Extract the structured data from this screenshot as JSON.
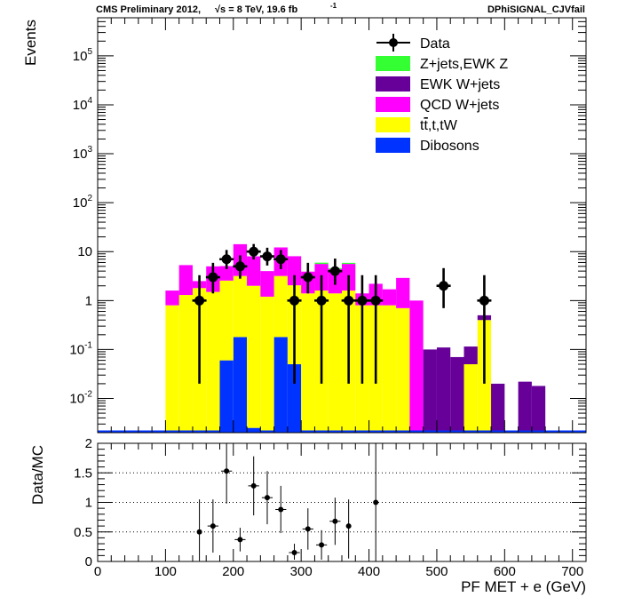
{
  "header": {
    "left_text": "CMS Preliminary 2012,",
    "energy": "√s = 8 TeV, 19.6 fb",
    "energy_exponent": "-1",
    "right_text": "DPhiSIGNAL_CJVfail"
  },
  "chart_data": [
    {
      "type": "bar",
      "stacked": true,
      "ylabel": "Events",
      "y_scale": "log",
      "ylim": [
        0.002,
        600000
      ],
      "y_tick_labels": [
        "10^-2",
        "10^-1",
        "1",
        "10",
        "10^2",
        "10^3",
        "10^4",
        "10^5"
      ],
      "legend_position": "top-right",
      "colors": {
        "data": "#000000",
        "zjets": "#33ff33",
        "ewk_wjets": "#660099",
        "qcd_wjets": "#ff00ff",
        "top": "#ffff00",
        "dibosons": "#0033ff"
      },
      "legend": [
        {
          "label": "Data",
          "key": "data",
          "marker": "point"
        },
        {
          "label": "Z+jets,EWK Z",
          "key": "zjets",
          "marker": "box"
        },
        {
          "label": "EWK W+jets",
          "key": "ewk_wjets",
          "marker": "box"
        },
        {
          "label": "QCD W+jets",
          "key": "qcd_wjets",
          "marker": "box"
        },
        {
          "label": "t",
          "label_overbar": "t",
          "label_rest": ",t,tW",
          "key": "top",
          "marker": "box"
        },
        {
          "label": "Dibosons",
          "key": "dibosons",
          "marker": "box"
        }
      ],
      "bin_edges": [
        0,
        20,
        40,
        60,
        80,
        100,
        120,
        140,
        160,
        180,
        200,
        220,
        240,
        260,
        280,
        300,
        320,
        340,
        360,
        380,
        400,
        420,
        440,
        460,
        480,
        500,
        520,
        540,
        560,
        580,
        600,
        620,
        640,
        660,
        680,
        700,
        720
      ],
      "stack": [
        {
          "key": "dibosons",
          "values": [
            0,
            0,
            0,
            0,
            0,
            0,
            0,
            0,
            0,
            0.06,
            0.18,
            0.0025,
            0,
            0.18,
            0.05,
            0,
            0,
            0,
            0,
            0,
            0,
            0,
            0,
            0,
            0,
            0,
            0,
            0,
            0,
            0,
            0,
            0,
            0,
            0,
            0,
            0
          ]
        },
        {
          "key": "top",
          "values": [
            0,
            0,
            0,
            0,
            0,
            0.8,
            1.3,
            1.8,
            1.5,
            2.5,
            3.0,
            2.0,
            1.2,
            3.0,
            2.0,
            1.4,
            1.6,
            1.4,
            1.6,
            0.8,
            0.8,
            0.8,
            0.7,
            0,
            0,
            0,
            0,
            0.05,
            0.4,
            0,
            0,
            0,
            0,
            0,
            0,
            0
          ]
        },
        {
          "key": "qcd_wjets",
          "values": [
            0,
            0,
            0,
            0,
            0,
            0.8,
            4.0,
            0.7,
            3.5,
            2.5,
            11,
            6,
            2.8,
            9,
            6,
            2.5,
            4.0,
            3.0,
            4.0,
            0.6,
            1.4,
            0.9,
            2.2,
            1.0,
            0,
            0,
            0,
            0,
            0,
            0,
            0,
            0,
            0,
            0,
            0,
            0
          ]
        },
        {
          "key": "ewk_wjets",
          "values": [
            0,
            0,
            0,
            0,
            0,
            0,
            0,
            0,
            0,
            0,
            0,
            0,
            0,
            0,
            0,
            0,
            0,
            0,
            0,
            0,
            0,
            0,
            0,
            0,
            0.1,
            0.11,
            0.07,
            0.065,
            0.1,
            0.02,
            0,
            0.022,
            0.018,
            0,
            0,
            0
          ]
        },
        {
          "key": "zjets",
          "values": [
            0,
            0,
            0,
            0,
            0,
            0,
            0,
            0,
            0,
            0,
            0,
            0,
            0,
            0,
            0,
            0,
            0.35,
            0.2,
            0.3,
            0,
            0,
            0,
            0,
            0,
            0,
            0,
            0,
            0,
            0,
            0,
            0,
            0,
            0,
            0,
            0,
            0
          ]
        }
      ],
      "data_points": [
        {
          "x": 150,
          "y": 1,
          "err_lo": 0.98,
          "err_hi": 2.3
        },
        {
          "x": 170,
          "y": 3,
          "err_lo": 1.6,
          "err_hi": 2.9
        },
        {
          "x": 190,
          "y": 7,
          "err_lo": 2.6,
          "err_hi": 3.8
        },
        {
          "x": 210,
          "y": 5,
          "err_lo": 2.2,
          "err_hi": 3.4
        },
        {
          "x": 230,
          "y": 10,
          "err_lo": 3.1,
          "err_hi": 4.3
        },
        {
          "x": 250,
          "y": 8,
          "err_lo": 2.8,
          "err_hi": 4.0
        },
        {
          "x": 270,
          "y": 7,
          "err_lo": 2.6,
          "err_hi": 3.8
        },
        {
          "x": 290,
          "y": 1,
          "err_lo": 0.98,
          "err_hi": 2.3
        },
        {
          "x": 310,
          "y": 3,
          "err_lo": 1.6,
          "err_hi": 2.9
        },
        {
          "x": 330,
          "y": 1,
          "err_lo": 0.98,
          "err_hi": 2.3
        },
        {
          "x": 350,
          "y": 4,
          "err_lo": 1.9,
          "err_hi": 3.2
        },
        {
          "x": 370,
          "y": 1,
          "err_lo": 0.98,
          "err_hi": 2.3
        },
        {
          "x": 390,
          "y": 1,
          "err_lo": 0.98,
          "err_hi": 2.3
        },
        {
          "x": 410,
          "y": 1,
          "err_lo": 0.98,
          "err_hi": 2.3
        },
        {
          "x": 510,
          "y": 2,
          "err_lo": 1.3,
          "err_hi": 2.6
        },
        {
          "x": 570,
          "y": 1,
          "err_lo": 0.98,
          "err_hi": 2.3
        }
      ]
    },
    {
      "type": "scatter",
      "ylabel": "Data/MC",
      "xlabel": "PF MET + e (GeV)",
      "xlim": [
        0,
        720
      ],
      "ylim": [
        0,
        2
      ],
      "x_ticks": [
        0,
        100,
        200,
        300,
        400,
        500,
        600,
        700
      ],
      "x_tick_labels": [
        "0",
        "100",
        "200",
        "300",
        "400",
        "500",
        "600",
        "700"
      ],
      "y_ticks": [
        0,
        0.5,
        1,
        1.5,
        2
      ],
      "y_tick_labels": [
        "0",
        "0.5",
        "1",
        "1.5",
        "2"
      ],
      "grid_lines": [
        0.5,
        1,
        1.5
      ],
      "points": [
        {
          "x": 150,
          "y": 0.5,
          "xerr": 0,
          "err_lo": 0.49,
          "err_hi": 0.55
        },
        {
          "x": 170,
          "y": 0.6,
          "xerr": 8,
          "err_lo": 0.45,
          "err_hi": 0.45
        },
        {
          "x": 190,
          "y": 1.53,
          "xerr": 8,
          "err_lo": 0.55,
          "err_hi": 0.55
        },
        {
          "x": 210,
          "y": 0.37,
          "xerr": 8,
          "err_lo": 0.2,
          "err_hi": 0.2
        },
        {
          "x": 230,
          "y": 1.28,
          "xerr": 8,
          "err_lo": 0.5,
          "err_hi": 0.5
        },
        {
          "x": 250,
          "y": 1.08,
          "xerr": 8,
          "err_lo": 0.45,
          "err_hi": 0.45
        },
        {
          "x": 270,
          "y": 0.88,
          "xerr": 8,
          "err_lo": 0.4,
          "err_hi": 0.4
        },
        {
          "x": 290,
          "y": 0.15,
          "xerr": 8,
          "err_lo": 0.12,
          "err_hi": 0.15
        },
        {
          "x": 310,
          "y": 0.55,
          "xerr": 8,
          "err_lo": 0.35,
          "err_hi": 0.35
        },
        {
          "x": 330,
          "y": 0.28,
          "xerr": 8,
          "err_lo": 0.25,
          "err_hi": 0.25
        },
        {
          "x": 350,
          "y": 0.68,
          "xerr": 8,
          "err_lo": 0.4,
          "err_hi": 0.4
        },
        {
          "x": 370,
          "y": 0.6,
          "xerr": 0,
          "err_lo": 0.55,
          "err_hi": 0.45
        },
        {
          "x": 410,
          "y": 1.0,
          "xerr": 0,
          "err_lo": 1.0,
          "err_hi": 1.0
        }
      ]
    }
  ]
}
